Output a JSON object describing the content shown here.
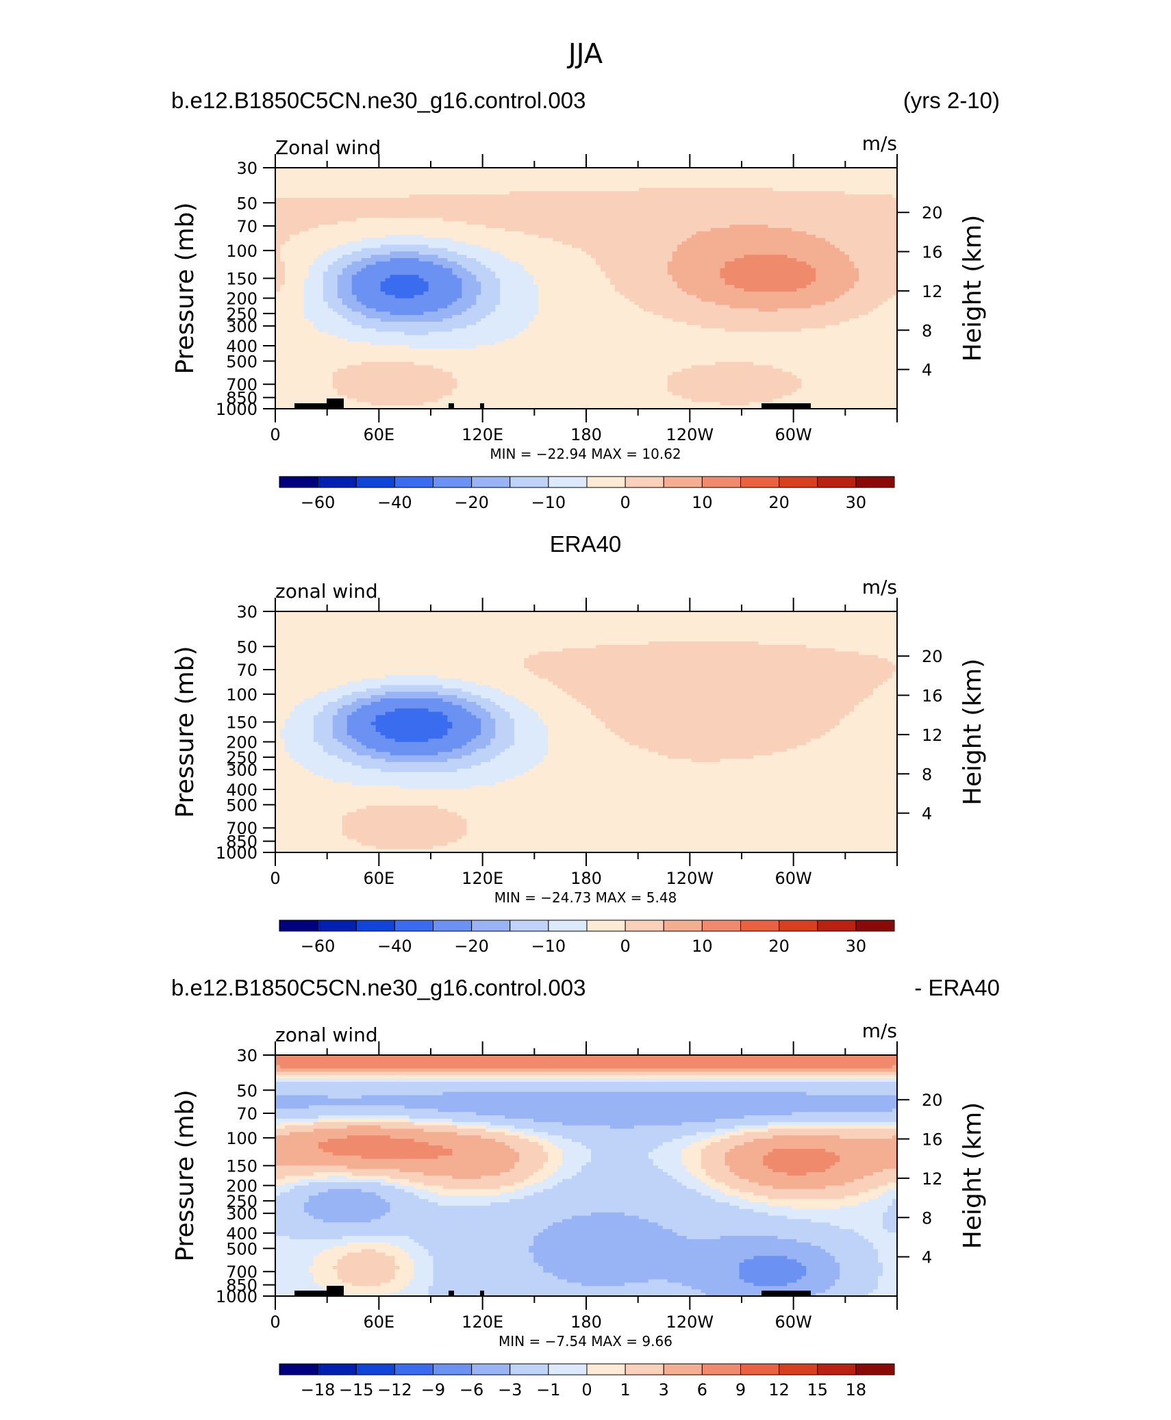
{
  "figure_title": "JJA",
  "chart_data": [
    {
      "type": "heatmap",
      "left_title": "b.e12.B1850C5CN.ne30_g16.control.003",
      "right_title": "(yrs 2-10)",
      "center_title": "",
      "field_label": "Zonal wind",
      "units": "m/s",
      "ylabel": "Pressure (mb)",
      "ylabel_right": "Height (km)",
      "x_ticks": [
        "0",
        "60E",
        "120E",
        "180",
        "120W",
        "60W"
      ],
      "y_ticks": [
        30,
        50,
        70,
        100,
        150,
        200,
        250,
        300,
        400,
        500,
        700,
        850,
        1000
      ],
      "height_ticks": [
        4,
        8,
        12,
        16,
        20
      ],
      "ylim": [
        1000,
        30
      ],
      "xlim": [
        0,
        360
      ],
      "min": -22.94,
      "max": 10.62,
      "stat_text": "MIN = −22.94   MAX =   10.62",
      "levels": [
        -70,
        -60,
        -50,
        -40,
        -30,
        -20,
        -15,
        -10,
        -5,
        0,
        5,
        10,
        15,
        20,
        25,
        30,
        35
      ],
      "colorbar_labels": [
        "−60",
        "−40",
        "−20",
        "−10",
        "0",
        "10",
        "20",
        "30"
      ],
      "features": [
        {
          "lon": 72,
          "p": 160,
          "v": -22,
          "slon": 28,
          "sp": 0.35
        },
        {
          "lon": 88,
          "p": 200,
          "v": -10,
          "slon": 40,
          "sp": 0.5
        },
        {
          "lon": 295,
          "p": 150,
          "v": 10,
          "slon": 40,
          "sp": 0.4
        },
        {
          "lon": 260,
          "p": 130,
          "v": 6,
          "slon": 50,
          "sp": 0.5
        },
        {
          "lon": 190,
          "p": 60,
          "v": 4,
          "slon": 260,
          "sp": 0.35
        },
        {
          "lon": 70,
          "p": 650,
          "v": 6,
          "slon": 30,
          "sp": 0.3
        },
        {
          "lon": 265,
          "p": 700,
          "v": 4,
          "slon": 40,
          "sp": 0.3
        },
        {
          "lon": 5,
          "p": 150,
          "v": 2,
          "slon": 12,
          "sp": 0.2
        }
      ]
    },
    {
      "type": "heatmap",
      "left_title": "",
      "right_title": "",
      "center_title": "ERA40",
      "field_label": "zonal wind",
      "units": "m/s",
      "ylabel": "Pressure (mb)",
      "ylabel_right": "Height (km)",
      "x_ticks": [
        "0",
        "60E",
        "120E",
        "180",
        "120W",
        "60W"
      ],
      "y_ticks": [
        30,
        50,
        70,
        100,
        150,
        200,
        250,
        300,
        400,
        500,
        700,
        850,
        1000
      ],
      "height_ticks": [
        4,
        8,
        12,
        16,
        20
      ],
      "ylim": [
        1000,
        30
      ],
      "xlim": [
        0,
        360
      ],
      "min": -24.73,
      "max": 5.48,
      "stat_text": "MIN = −24.73   MAX =    5.48",
      "levels": [
        -70,
        -60,
        -50,
        -40,
        -30,
        -20,
        -15,
        -10,
        -5,
        0,
        5,
        10,
        15,
        20,
        25,
        30,
        35
      ],
      "colorbar_labels": [
        "−60",
        "−40",
        "−20",
        "−10",
        "0",
        "10",
        "20",
        "30"
      ],
      "features": [
        {
          "lon": 78,
          "p": 150,
          "v": -24,
          "slon": 30,
          "sp": 0.32
        },
        {
          "lon": 85,
          "p": 180,
          "v": -12,
          "slon": 45,
          "sp": 0.5
        },
        {
          "lon": 255,
          "p": 130,
          "v": 6,
          "slon": 55,
          "sp": 0.5
        },
        {
          "lon": 185,
          "p": 70,
          "v": 3,
          "slon": 260,
          "sp": 0.4
        },
        {
          "lon": 75,
          "p": 650,
          "v": 6,
          "slon": 30,
          "sp": 0.3
        },
        {
          "lon": 220,
          "p": 450,
          "v": 2,
          "slon": 40,
          "sp": 0.3
        }
      ]
    },
    {
      "type": "heatmap",
      "left_title": "b.e12.B1850C5CN.ne30_g16.control.003",
      "right_title": "- ERA40",
      "center_title": "",
      "field_label": "zonal wind",
      "units": "m/s",
      "ylabel": "Pressure (mb)",
      "ylabel_right": "Height (km)",
      "x_ticks": [
        "0",
        "60E",
        "120E",
        "180",
        "120W",
        "60W"
      ],
      "y_ticks": [
        30,
        50,
        70,
        100,
        150,
        200,
        250,
        300,
        400,
        500,
        700,
        850,
        1000
      ],
      "height_ticks": [
        4,
        8,
        12,
        16,
        20
      ],
      "ylim": [
        1000,
        30
      ],
      "xlim": [
        0,
        360
      ],
      "min": -7.54,
      "max": 9.66,
      "stat_text": "MIN =   −7.54   MAX =    9.66",
      "levels": [
        -21,
        -18,
        -15,
        -12,
        -9,
        -6,
        -3,
        -1,
        0,
        1,
        3,
        6,
        9,
        12,
        15,
        18,
        21
      ],
      "colorbar_labels": [
        "−18",
        "−15",
        "−12",
        "−9",
        "−6",
        "−3",
        "−1",
        "0",
        "1",
        "3",
        "6",
        "9",
        "12",
        "15",
        "18"
      ],
      "features": [
        {
          "lon": 180,
          "p": 33,
          "v": 9,
          "slon": 400,
          "sp": 0.12
        },
        {
          "lon": 180,
          "p": 65,
          "v": -4,
          "slon": 400,
          "sp": 0.25
        },
        {
          "lon": 50,
          "p": 110,
          "v": 8,
          "slon": 40,
          "sp": 0.3
        },
        {
          "lon": 120,
          "p": 140,
          "v": 5,
          "slon": 30,
          "sp": 0.35
        },
        {
          "lon": 300,
          "p": 140,
          "v": 8,
          "slon": 35,
          "sp": 0.35
        },
        {
          "lon": 190,
          "p": 500,
          "v": -3,
          "slon": 70,
          "sp": 0.9
        },
        {
          "lon": 290,
          "p": 700,
          "v": -6,
          "slon": 25,
          "sp": 0.3
        },
        {
          "lon": 40,
          "p": 260,
          "v": -4,
          "slon": 25,
          "sp": 0.3
        },
        {
          "lon": 55,
          "p": 650,
          "v": 3,
          "slon": 20,
          "sp": 0.3
        }
      ]
    }
  ],
  "palette": [
    "#00007f",
    "#0020b0",
    "#0f45d8",
    "#3a6cf0",
    "#6b92f2",
    "#98b4f4",
    "#bfd2f8",
    "#ddeafb",
    "#fdebd6",
    "#f9d0ba",
    "#f4ae92",
    "#ef8a6c",
    "#e8623f",
    "#d6401f",
    "#b9220e",
    "#8a0a07"
  ]
}
